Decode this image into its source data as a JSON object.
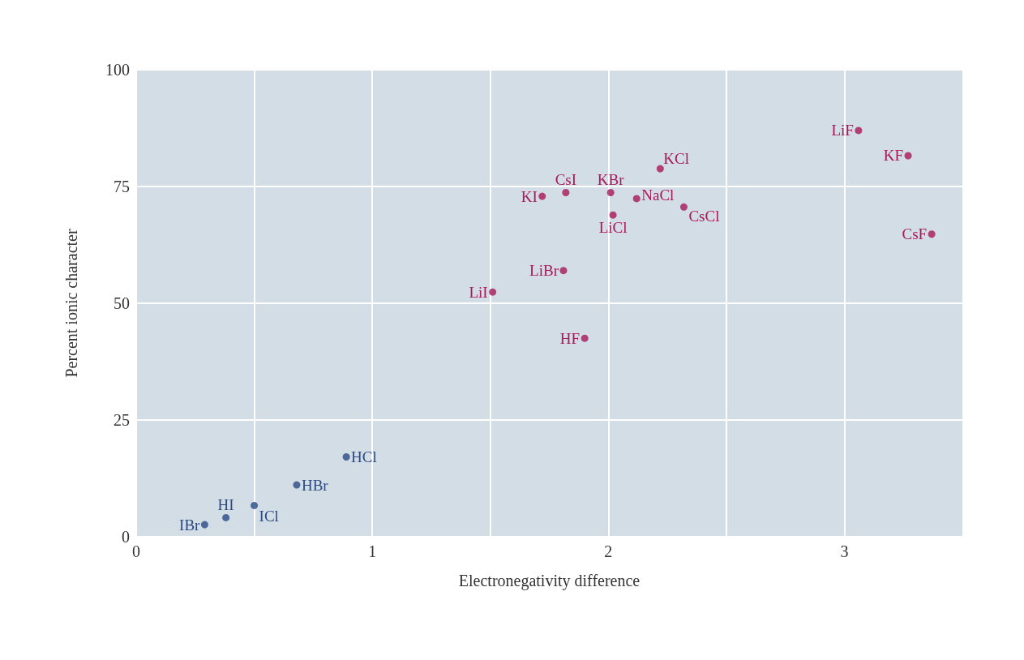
{
  "chart_data": {
    "type": "scatter",
    "xlabel": "Electronegativity difference",
    "ylabel": "Percent ionic character",
    "xlim": [
      0,
      3.5
    ],
    "xticks": [
      0,
      {
        "value": 0.5,
        "label": null
      },
      1,
      {
        "value": 1.5,
        "label": null
      },
      2,
      {
        "value": 2.5,
        "label": null
      },
      3
    ],
    "ylim": [
      0,
      100
    ],
    "yticks": [
      0,
      25,
      50,
      75,
      100
    ],
    "grid": true,
    "marker": "circle",
    "series": [
      {
        "color": "#2b4b85",
        "x": [
          0.29,
          0.38,
          0.5,
          0.68,
          0.89
        ],
        "values": [
          2.6,
          4.1,
          6.7,
          11.1,
          17.1
        ]
      },
      {
        "color": "#a8185a",
        "x": [
          1.51,
          1.81,
          1.9,
          1.72,
          1.82,
          2.01,
          2.02,
          2.12,
          2.22,
          2.32,
          3.06,
          3.27,
          3.37
        ],
        "values": [
          52.4,
          57,
          42.5,
          72.9,
          73.7,
          73.7,
          68.9,
          72.4,
          78.8,
          70.6,
          87,
          81.6,
          64.8
        ]
      }
    ],
    "annotations": [
      {
        "text": "IBr",
        "x": 0.29,
        "y": 2.6
      },
      {
        "text": "HI",
        "x": 0.38,
        "y": 4.1
      },
      {
        "text": "ICl",
        "x": 0.5,
        "y": 6.7
      },
      {
        "text": "HBr",
        "x": 0.68,
        "y": 11.1
      },
      {
        "text": "HCl",
        "x": 0.89,
        "y": 17.1
      },
      {
        "text": "LiI",
        "x": 1.51,
        "y": 52.4
      },
      {
        "text": "LiBr",
        "x": 1.81,
        "y": 57
      },
      {
        "text": "HF",
        "x": 1.9,
        "y": 42.5
      },
      {
        "text": "KI",
        "x": 1.72,
        "y": 72.9
      },
      {
        "text": "CsI",
        "x": 1.82,
        "y": 73.7
      },
      {
        "text": "KBr",
        "x": 2.01,
        "y": 73.7
      },
      {
        "text": "LiCl",
        "x": 2.02,
        "y": 68.9
      },
      {
        "text": "NaCl",
        "x": 2.12,
        "y": 72.4
      },
      {
        "text": "KCl",
        "x": 2.22,
        "y": 78.8
      },
      {
        "text": "CsCl",
        "x": 2.32,
        "y": 70.6
      },
      {
        "text": "LiF",
        "x": 3.06,
        "y": 87
      },
      {
        "text": "KF",
        "x": 3.27,
        "y": 81.6
      },
      {
        "text": "CsF",
        "x": 3.37,
        "y": 64.8
      }
    ]
  }
}
